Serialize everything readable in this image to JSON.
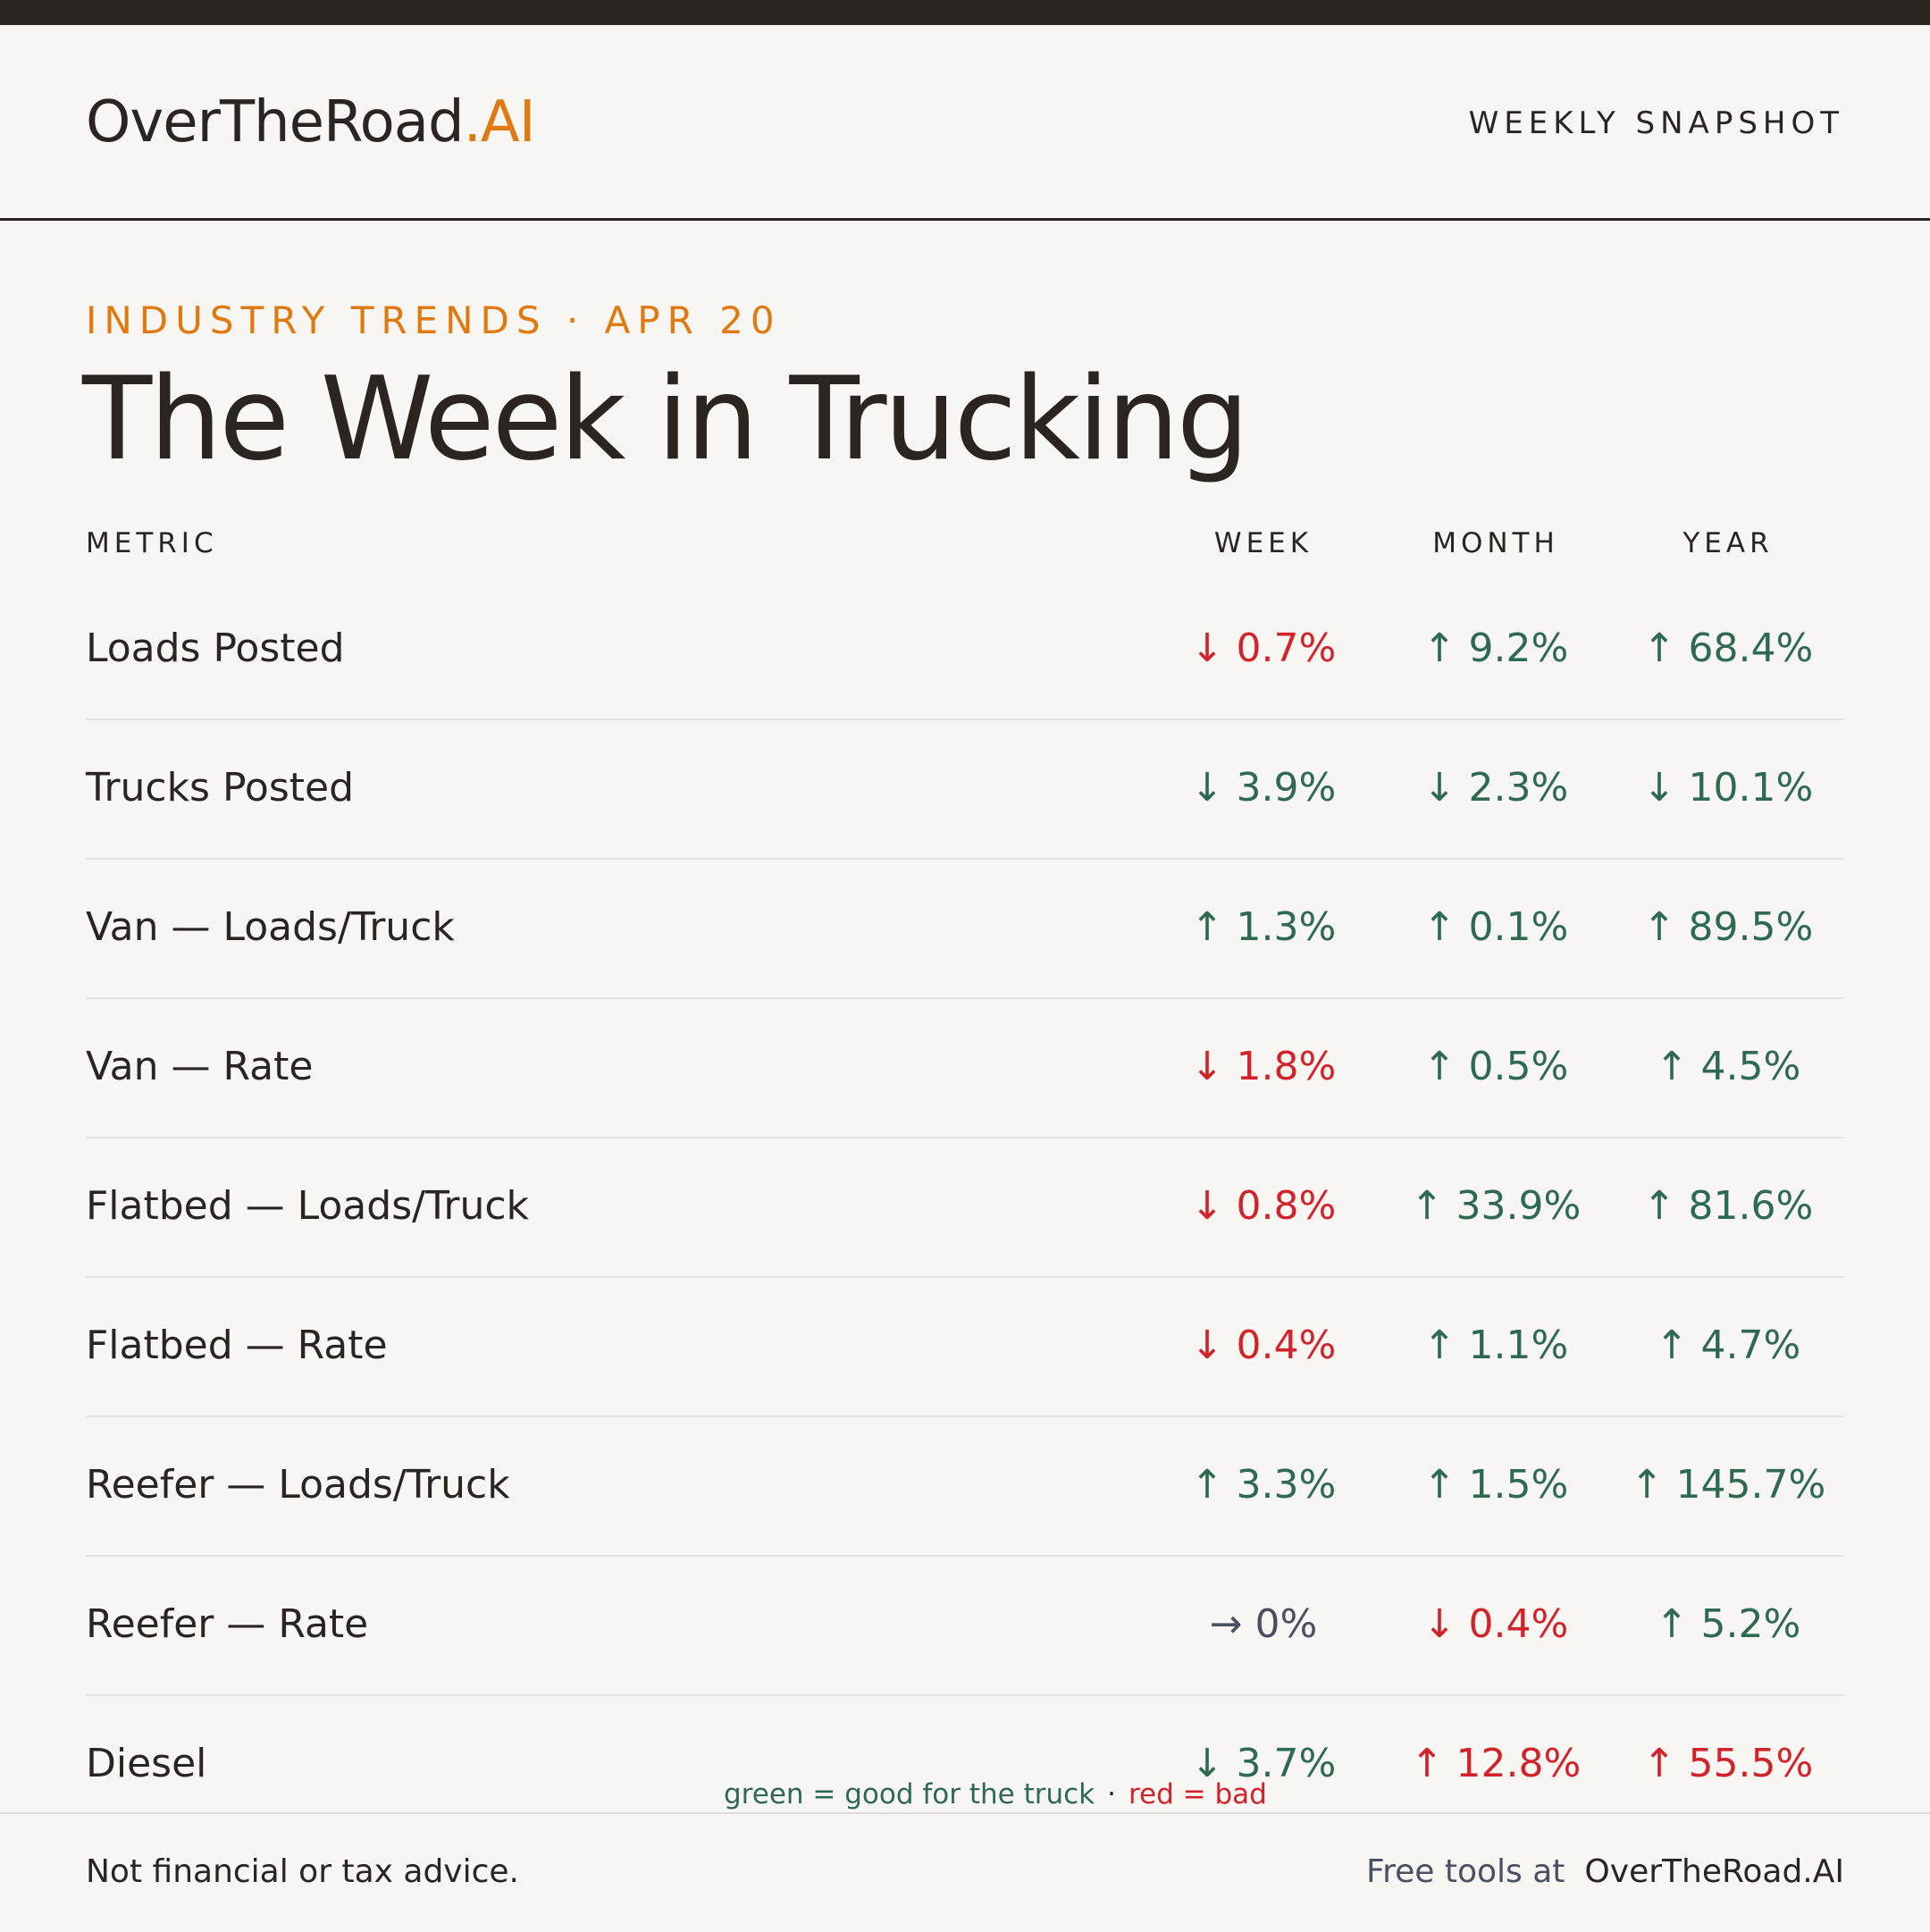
{
  "brand": {
    "name": "OverTheRoad",
    "suffix": ".AI"
  },
  "header": {
    "tag": "WEEKLY SNAPSHOT"
  },
  "kicker": "INDUSTRY TRENDS · APR 20",
  "title": "The Week in Trucking",
  "table": {
    "columns": [
      "METRIC",
      "WEEK",
      "MONTH",
      "YEAR"
    ],
    "rows": [
      {
        "metric": "Loads Posted",
        "week": {
          "text": "↓ 0.7%",
          "tone": "bad"
        },
        "month": {
          "text": "↑ 9.2%",
          "tone": "good"
        },
        "year": {
          "text": "↑ 68.4%",
          "tone": "good"
        }
      },
      {
        "metric": "Trucks Posted",
        "week": {
          "text": "↓ 3.9%",
          "tone": "good"
        },
        "month": {
          "text": "↓ 2.3%",
          "tone": "good"
        },
        "year": {
          "text": "↓ 10.1%",
          "tone": "good"
        }
      },
      {
        "metric": "Van — Loads/Truck",
        "week": {
          "text": "↑ 1.3%",
          "tone": "good"
        },
        "month": {
          "text": "↑ 0.1%",
          "tone": "good"
        },
        "year": {
          "text": "↑ 89.5%",
          "tone": "good"
        }
      },
      {
        "metric": "Van — Rate",
        "week": {
          "text": "↓ 1.8%",
          "tone": "bad"
        },
        "month": {
          "text": "↑ 0.5%",
          "tone": "good"
        },
        "year": {
          "text": "↑ 4.5%",
          "tone": "good"
        }
      },
      {
        "metric": "Flatbed — Loads/Truck",
        "week": {
          "text": "↓ 0.8%",
          "tone": "bad"
        },
        "month": {
          "text": "↑ 33.9%",
          "tone": "good"
        },
        "year": {
          "text": "↑ 81.6%",
          "tone": "good"
        }
      },
      {
        "metric": "Flatbed — Rate",
        "week": {
          "text": "↓ 0.4%",
          "tone": "bad"
        },
        "month": {
          "text": "↑ 1.1%",
          "tone": "good"
        },
        "year": {
          "text": "↑ 4.7%",
          "tone": "good"
        }
      },
      {
        "metric": "Reefer — Loads/Truck",
        "week": {
          "text": "↑ 3.3%",
          "tone": "good"
        },
        "month": {
          "text": "↑ 1.5%",
          "tone": "good"
        },
        "year": {
          "text": "↑ 145.7%",
          "tone": "good"
        }
      },
      {
        "metric": "Reefer — Rate",
        "week": {
          "text": "→ 0%",
          "tone": "flat"
        },
        "month": {
          "text": "↓ 0.4%",
          "tone": "bad"
        },
        "year": {
          "text": "↑ 5.2%",
          "tone": "good"
        }
      },
      {
        "metric": "Diesel",
        "week": {
          "text": "↓ 3.7%",
          "tone": "good"
        },
        "month": {
          "text": "↑ 12.8%",
          "tone": "bad"
        },
        "year": {
          "text": "↑ 55.5%",
          "tone": "bad"
        }
      }
    ]
  },
  "legend": {
    "good": "green = good for the truck",
    "separator": "·",
    "bad": "red = bad"
  },
  "footer": {
    "disclaimer": "Not financial or tax advice.",
    "tools_lead": "Free tools at",
    "tools_site": "OverTheRoad.AI"
  },
  "colors": {
    "good": "#2d6a4f",
    "bad": "#d0242a",
    "flat": "#4a5060",
    "accent": "#e07a10",
    "ink": "#2a2520",
    "background": "#f7f6f3"
  }
}
